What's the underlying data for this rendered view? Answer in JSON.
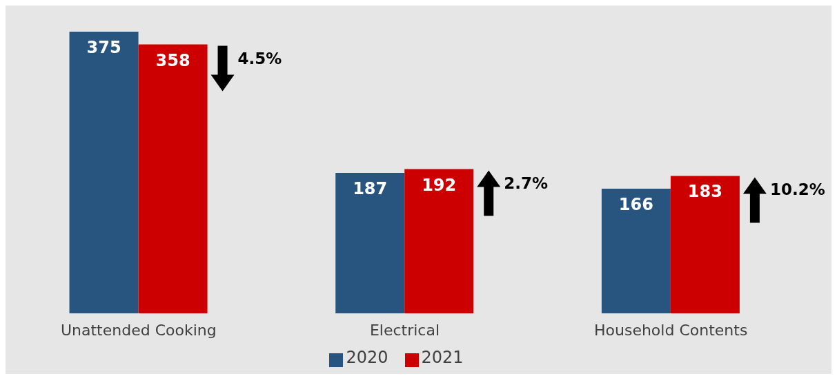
{
  "chart_data": {
    "type": "bar",
    "categories": [
      "Unattended Cooking",
      "Electrical",
      "Household Contents"
    ],
    "series": [
      {
        "name": "2020",
        "color": "#27557f",
        "values": [
          375,
          187,
          166
        ]
      },
      {
        "name": "2021",
        "color": "#cc0000",
        "values": [
          358,
          192,
          183
        ]
      }
    ],
    "data_labels": true,
    "legend": "bottom",
    "grid": false,
    "annotations": [
      "4.5%",
      "2.7%",
      "10.2%"
    ]
  }
}
